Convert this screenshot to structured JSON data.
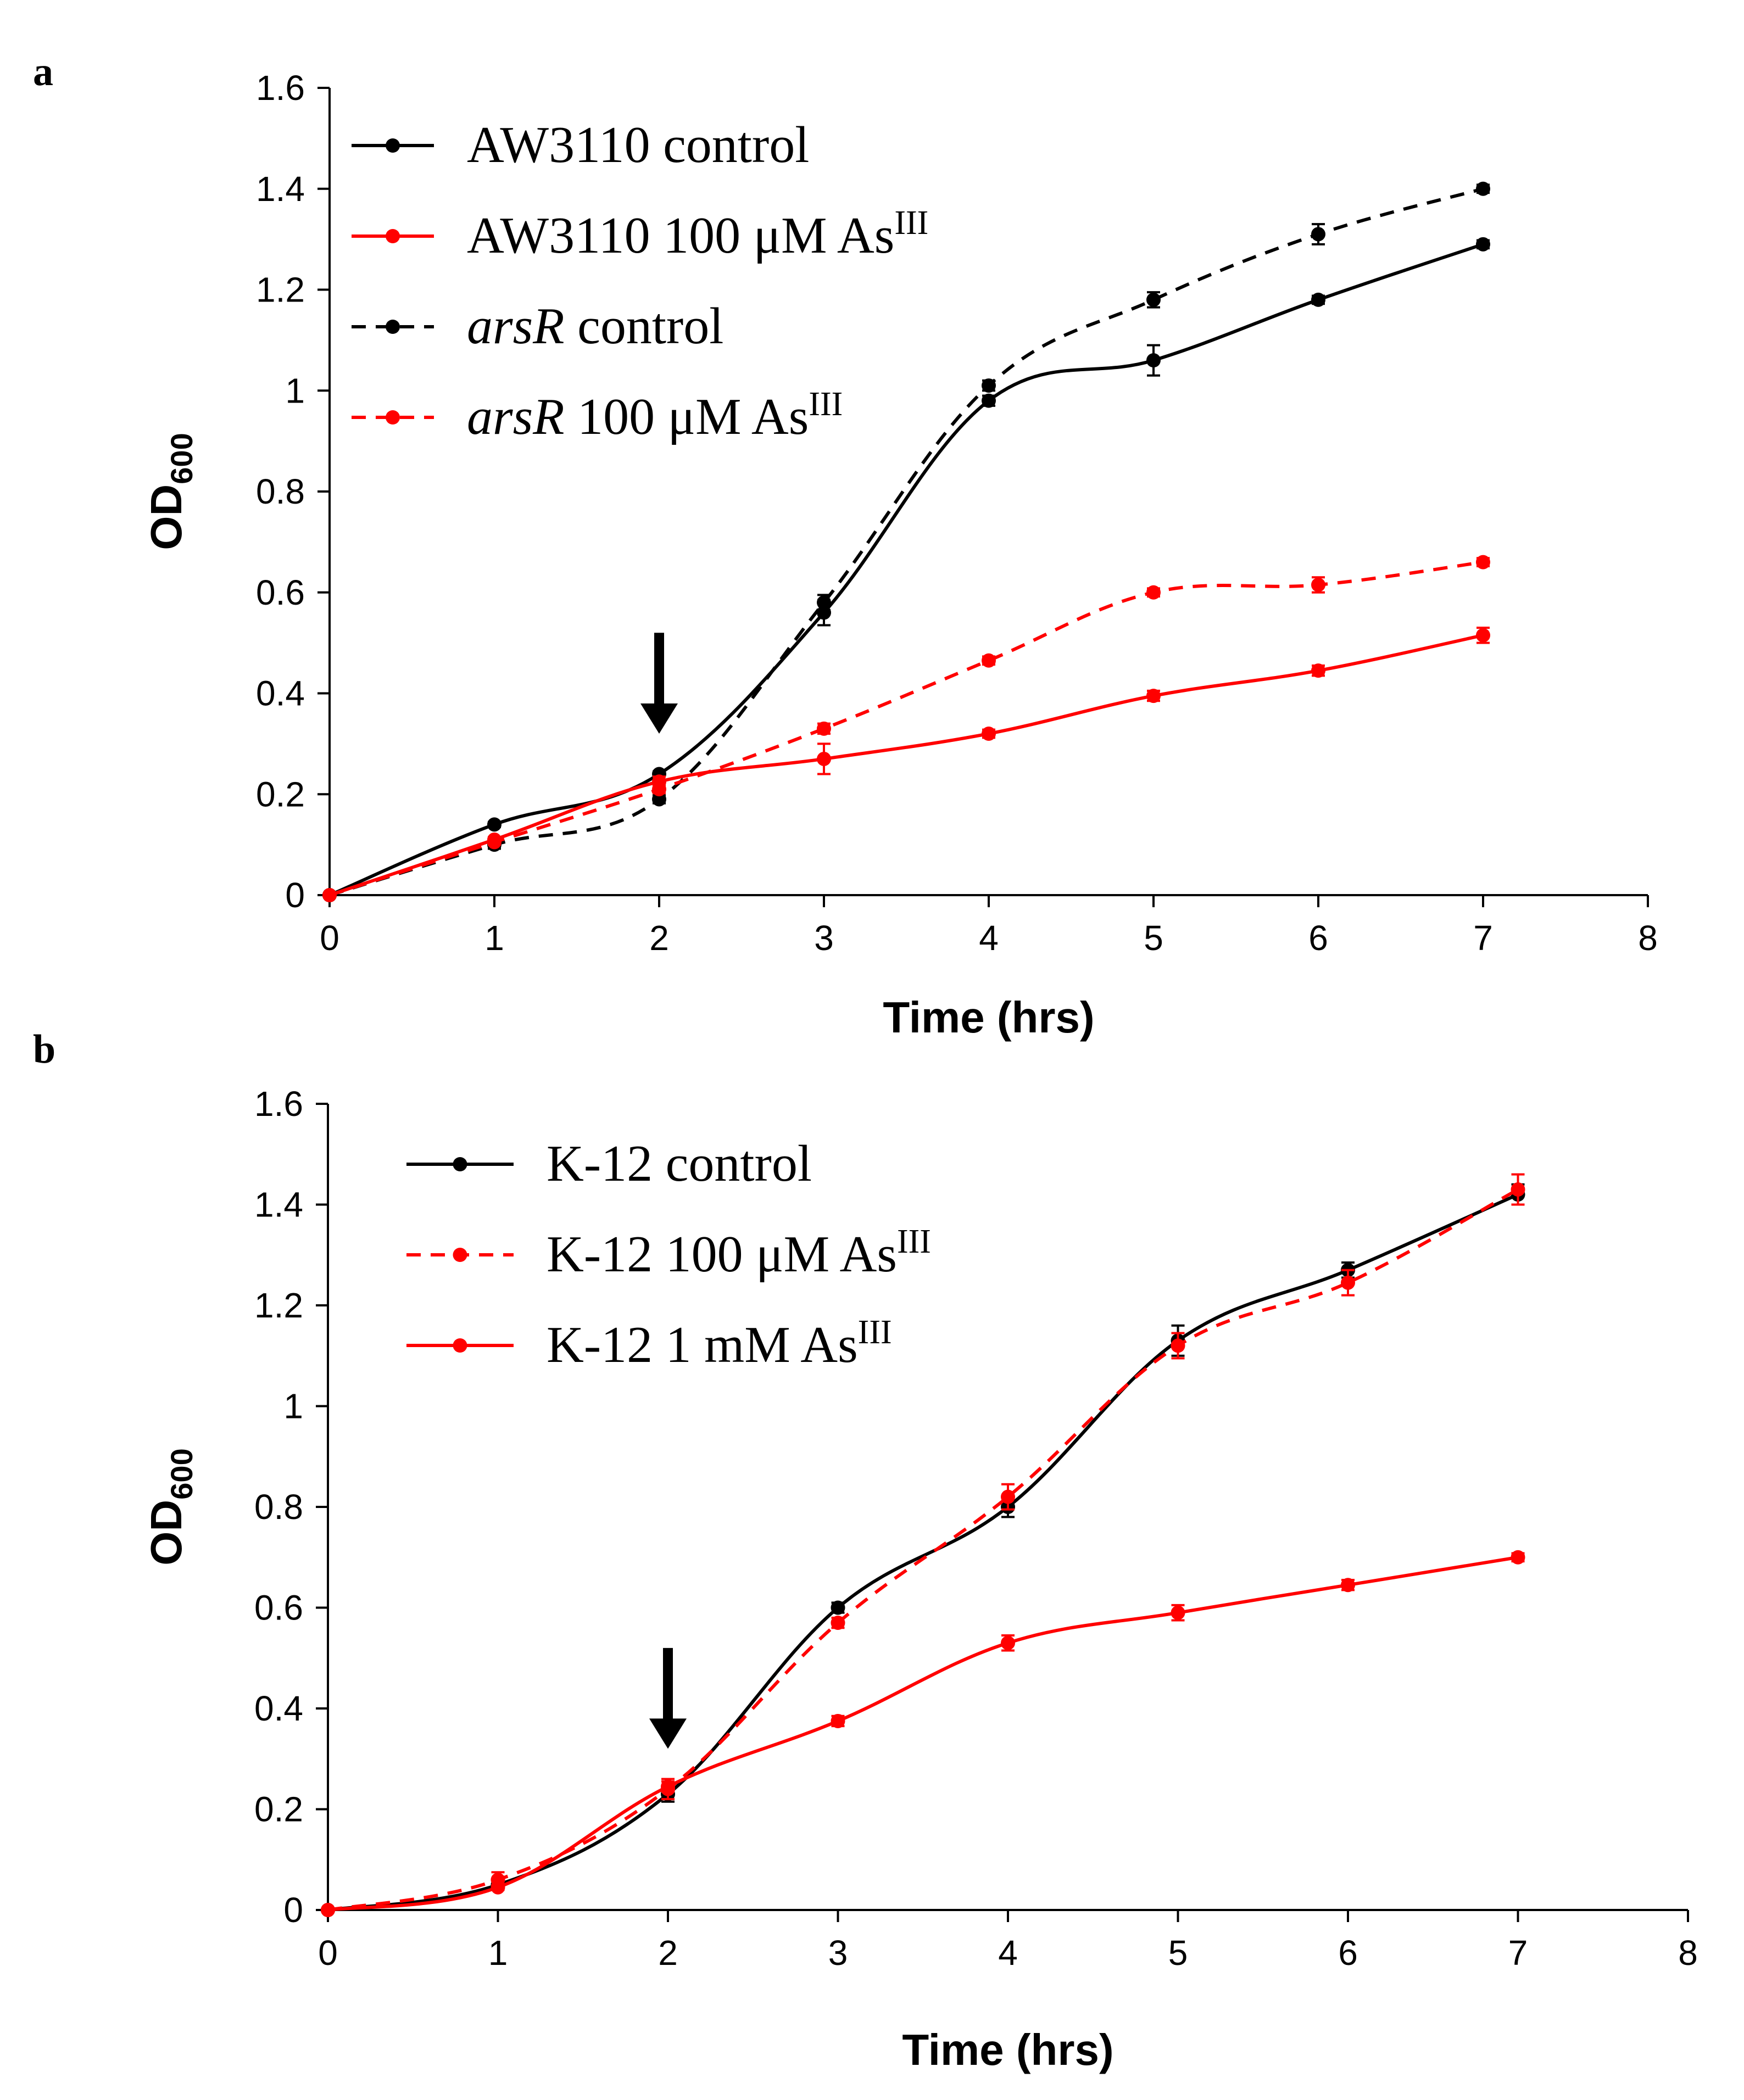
{
  "colors": {
    "black": "#000000",
    "red": "#ff0000"
  },
  "chart_data": [
    {
      "panel": "a",
      "type": "line",
      "xlabel": "Time (hrs)",
      "ylabel_main": "OD",
      "ylabel_sub": "600",
      "xlim": [
        0,
        8
      ],
      "ylim": [
        0,
        1.6
      ],
      "xticks": [
        "0",
        "1",
        "2",
        "3",
        "4",
        "5",
        "6",
        "7",
        "8"
      ],
      "yticks": [
        "0",
        "0.2",
        "0.4",
        "0.6",
        "0.8",
        "1",
        "1.2",
        "1.4",
        "1.6"
      ],
      "x": [
        0,
        1,
        2,
        3,
        4,
        5,
        6,
        7
      ],
      "arrow_annotation": {
        "x": 2,
        "y_tip": 0.32,
        "y_tail": 0.52
      },
      "legend_position": "top-left",
      "series": [
        {
          "name_parts": [
            {
              "text": "AW3110 control"
            }
          ],
          "color": "#000000",
          "dashed": false,
          "values": [
            0,
            0.14,
            0.24,
            0.56,
            0.98,
            1.06,
            1.18,
            1.29
          ],
          "errors": [
            0,
            0.005,
            0.005,
            0.025,
            0.01,
            0.03,
            0.008,
            0.008
          ]
        },
        {
          "name_parts": [
            {
              "text": "AW3110 100 μM As"
            },
            {
              "text": "III",
              "sup": true
            }
          ],
          "color": "#ff0000",
          "dashed": false,
          "values": [
            0,
            0.11,
            0.225,
            0.27,
            0.32,
            0.395,
            0.445,
            0.515
          ],
          "errors": [
            0,
            0.005,
            0.01,
            0.03,
            0.008,
            0.01,
            0.01,
            0.015
          ]
        },
        {
          "name_parts": [
            {
              "text": "arsR",
              "italic": true
            },
            {
              "text": " control"
            }
          ],
          "color": "#000000",
          "dashed": true,
          "values": [
            0,
            0.1,
            0.19,
            0.58,
            1.01,
            1.18,
            1.31,
            1.4
          ],
          "errors": [
            0,
            0.008,
            0.008,
            0.015,
            0.01,
            0.015,
            0.02,
            0.008
          ]
        },
        {
          "name_parts": [
            {
              "text": "arsR",
              "italic": true
            },
            {
              "text": " 100 μM As"
            },
            {
              "text": "III",
              "sup": true
            }
          ],
          "color": "#ff0000",
          "dashed": true,
          "values": [
            0,
            0.105,
            0.21,
            0.33,
            0.465,
            0.6,
            0.615,
            0.66
          ],
          "errors": [
            0,
            0.005,
            0.008,
            0.01,
            0.008,
            0.008,
            0.015,
            0.008
          ]
        }
      ]
    },
    {
      "panel": "b",
      "type": "line",
      "xlabel": "Time (hrs)",
      "ylabel_main": "OD",
      "ylabel_sub": "600",
      "xlim": [
        0,
        8
      ],
      "ylim": [
        0,
        1.6
      ],
      "xticks": [
        "0",
        "1",
        "2",
        "3",
        "4",
        "5",
        "6",
        "7",
        "8"
      ],
      "yticks": [
        "0",
        "0.2",
        "0.4",
        "0.6",
        "0.8",
        "1",
        "1.2",
        "1.4",
        "1.6"
      ],
      "x": [
        0,
        1,
        2,
        3,
        4,
        5,
        6,
        7
      ],
      "arrow_annotation": {
        "x": 2,
        "y_tip": 0.32,
        "y_tail": 0.52
      },
      "legend_position": "top-left",
      "series": [
        {
          "name_parts": [
            {
              "text": "K-12 control"
            }
          ],
          "color": "#000000",
          "dashed": false,
          "values": [
            0,
            0.05,
            0.23,
            0.6,
            0.8,
            1.13,
            1.27,
            1.42
          ],
          "errors": [
            0,
            0.01,
            0.015,
            0.01,
            0.02,
            0.03,
            0.015,
            0.02
          ]
        },
        {
          "name_parts": [
            {
              "text": "K-12 100 μM As"
            },
            {
              "text": "III",
              "sup": true
            }
          ],
          "color": "#ff0000",
          "dashed": true,
          "values": [
            0,
            0.06,
            0.24,
            0.57,
            0.82,
            1.12,
            1.245,
            1.43
          ],
          "errors": [
            0,
            0.015,
            0.02,
            0.01,
            0.025,
            0.025,
            0.025,
            0.03
          ]
        },
        {
          "name_parts": [
            {
              "text": "K-12 1 mM As"
            },
            {
              "text": "III",
              "sup": true
            }
          ],
          "color": "#ff0000",
          "dashed": false,
          "values": [
            0,
            0.045,
            0.245,
            0.375,
            0.53,
            0.59,
            0.645,
            0.7
          ],
          "errors": [
            0,
            0.005,
            0.01,
            0.01,
            0.015,
            0.015,
            0.01,
            0.008
          ]
        }
      ]
    }
  ]
}
